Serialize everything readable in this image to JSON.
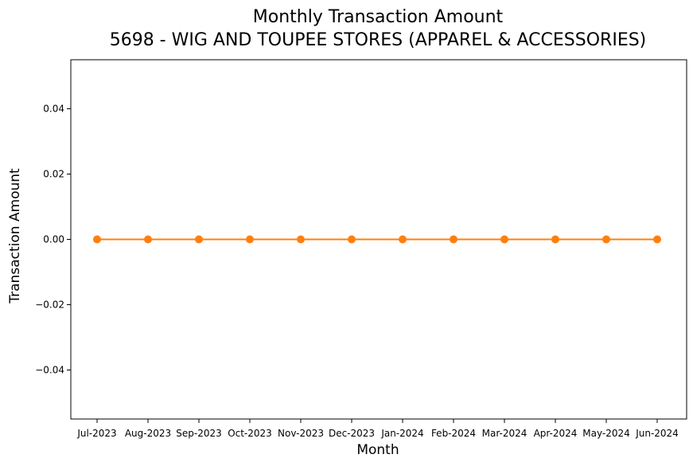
{
  "chart_data": {
    "type": "line",
    "title": "Monthly Transaction Amount",
    "subtitle": "5698 - WIG AND TOUPEE STORES (APPAREL & ACCESSORIES)",
    "xlabel": "Month",
    "ylabel": "Transaction Amount",
    "categories": [
      "Jul-2023",
      "Aug-2023",
      "Sep-2023",
      "Oct-2023",
      "Nov-2023",
      "Dec-2023",
      "Jan-2024",
      "Feb-2024",
      "Mar-2024",
      "Apr-2024",
      "May-2024",
      "Jun-2024"
    ],
    "series": [
      {
        "values": [
          0,
          0,
          0,
          0,
          0,
          0,
          0,
          0,
          0,
          0,
          0,
          0
        ],
        "color": "#ff7f0e"
      }
    ],
    "yticks": [
      "0.04",
      "0.02",
      "0.00",
      "−0.02",
      "−0.04"
    ],
    "ytick_values": [
      0.04,
      0.02,
      0.0,
      -0.02,
      -0.04
    ],
    "ylim": [
      -0.055,
      0.055
    ],
    "grid": false,
    "legend": "none"
  }
}
